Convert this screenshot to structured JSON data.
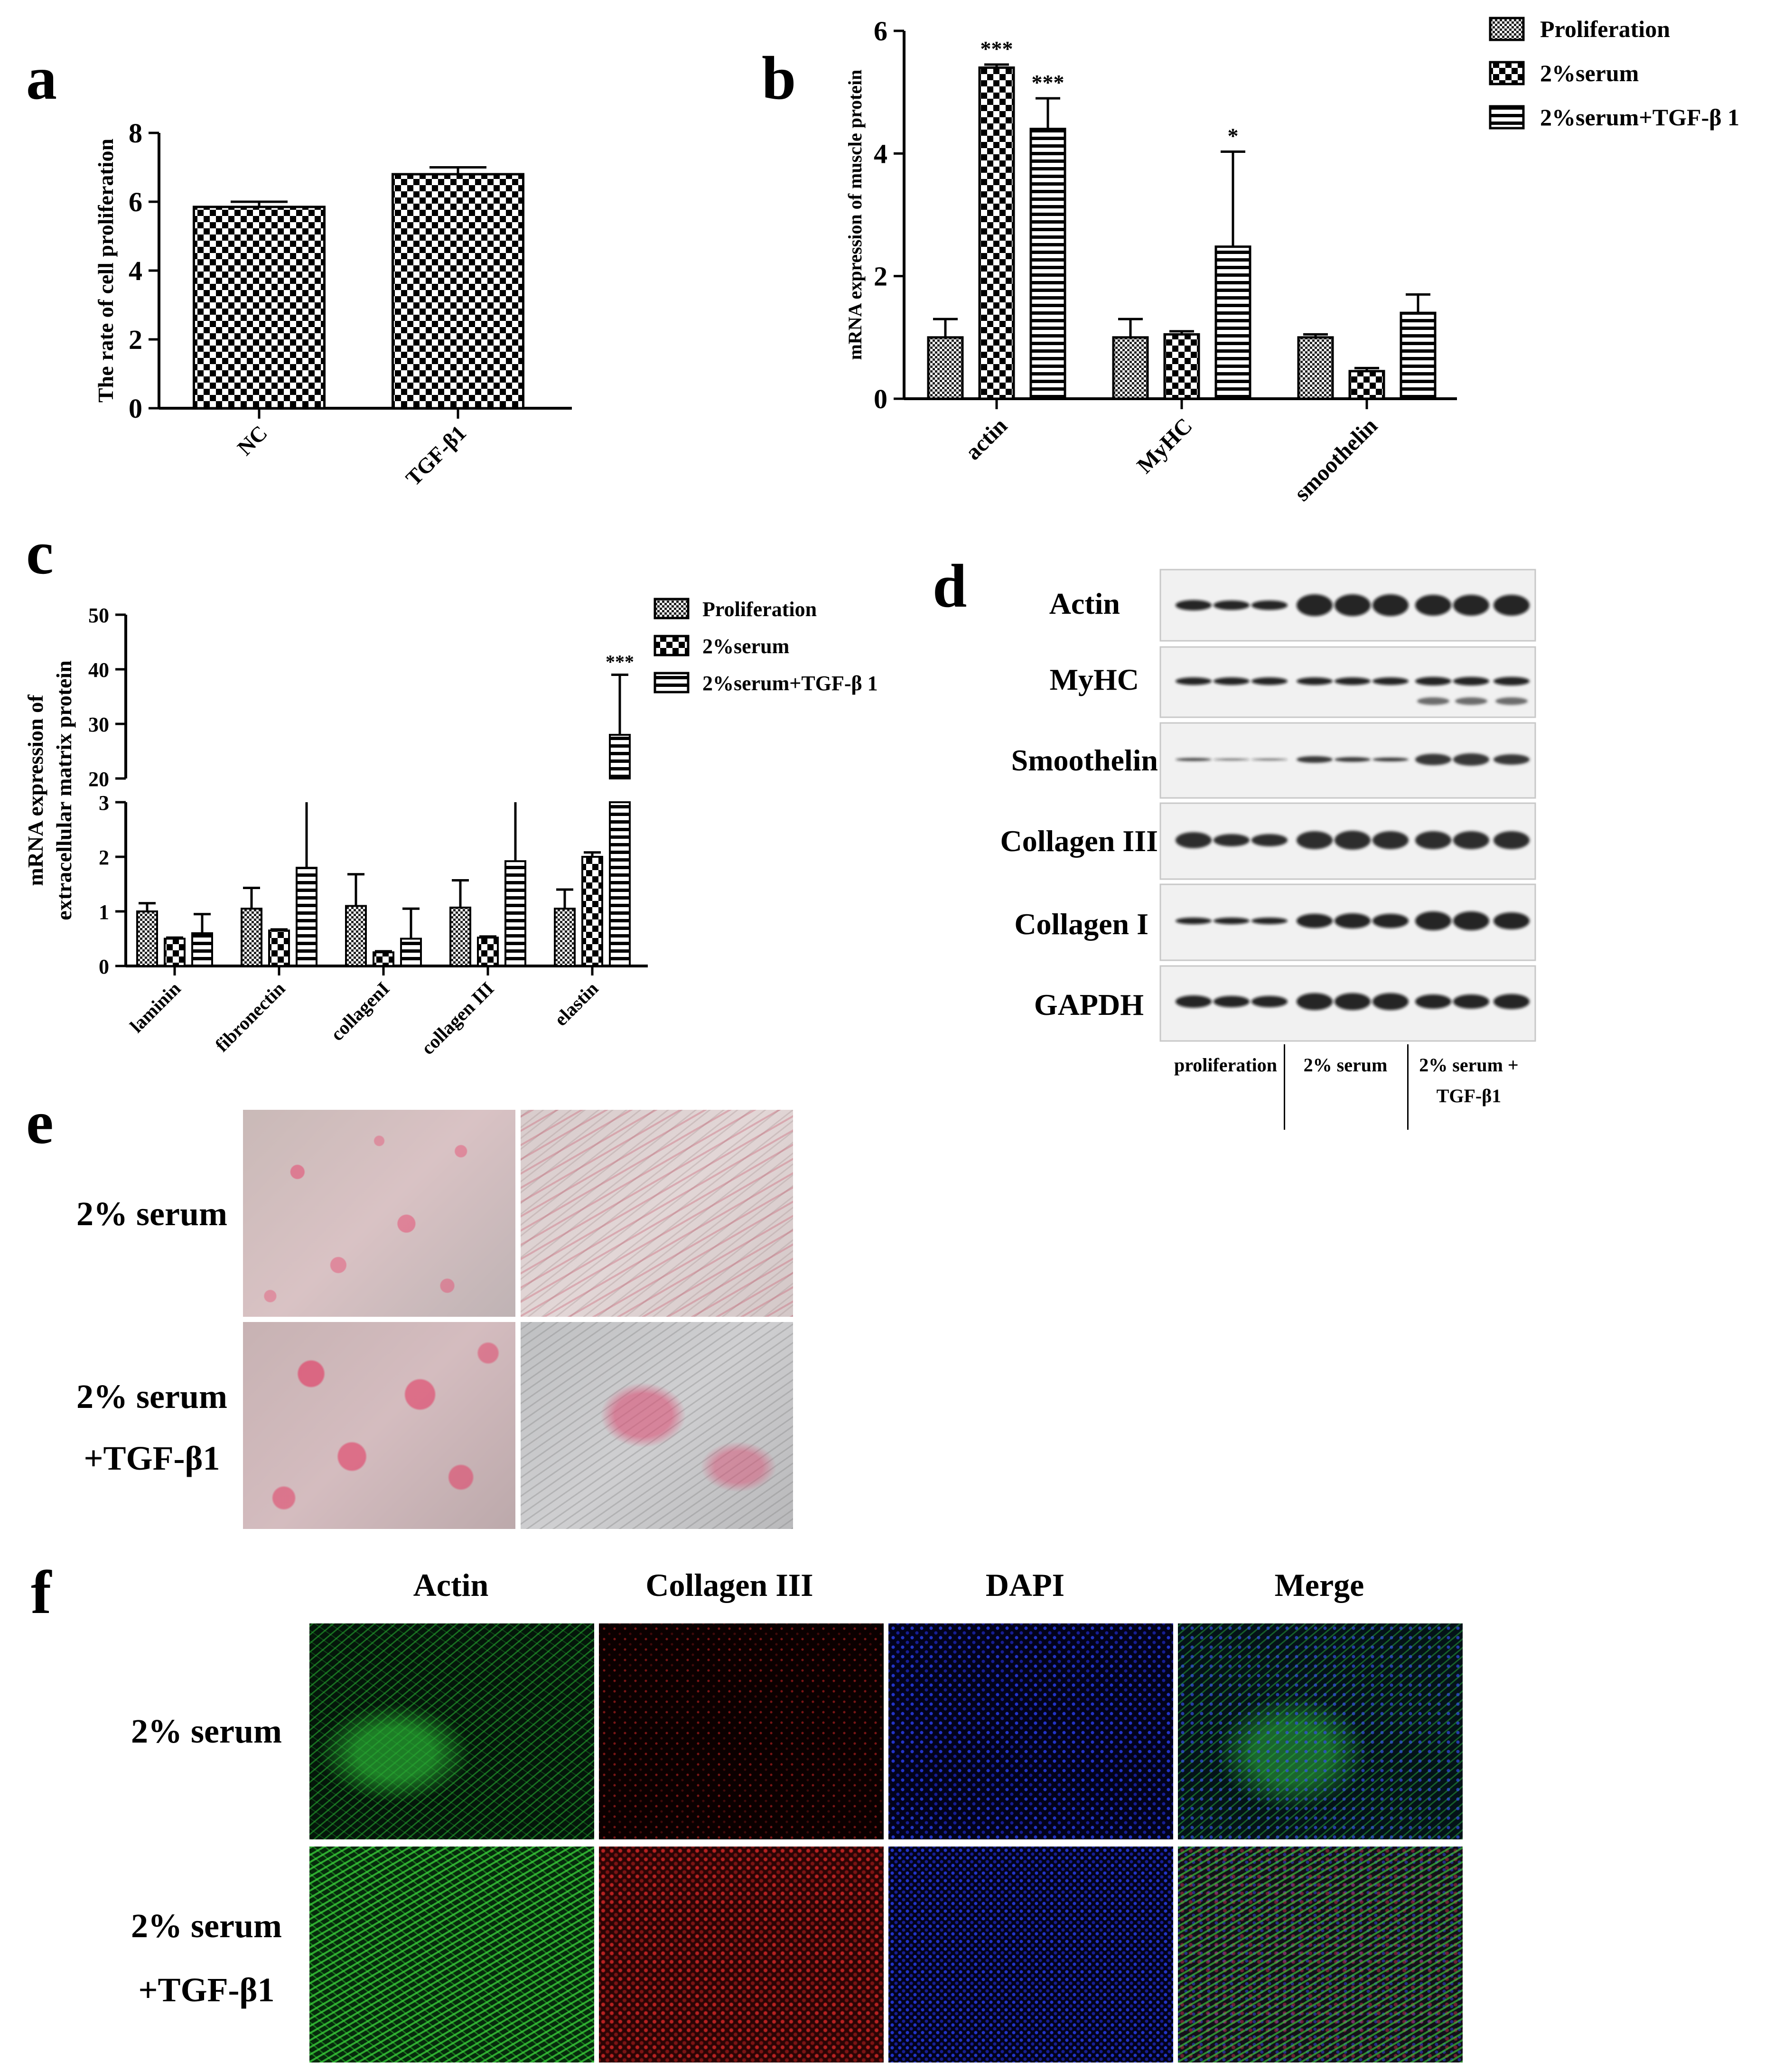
{
  "panels": {
    "a": "a",
    "b": "b",
    "c": "c",
    "d": "d",
    "e": "e",
    "f": "f"
  },
  "colors": {
    "axis": "#000000",
    "bar_fill_light": "#ffffff",
    "bar_fill_dark": "#000000",
    "micro_red": "#e24a6a",
    "fluor_green": "#1f9e2a",
    "fluor_red": "#b01818",
    "fluor_blue": "#1a22c8"
  },
  "chart_data": [
    {
      "id": "a",
      "type": "bar",
      "ylabel": "The rate of cell proliferation",
      "categories": [
        "NC",
        "TGF-β1"
      ],
      "values": [
        5.85,
        6.8
      ],
      "errors": [
        0.15,
        0.2
      ],
      "ylim": [
        0,
        8
      ],
      "yticks": [
        "0",
        "2",
        "4",
        "6",
        "8"
      ],
      "pattern": "checker",
      "grid": false
    },
    {
      "id": "b",
      "type": "bar",
      "ylabel": "mRNA expression of muscle protein",
      "categories": [
        "actin",
        "MyHC",
        "smoothelin"
      ],
      "ylim": [
        0,
        6
      ],
      "yticks": [
        "0",
        "2",
        "4",
        "6"
      ],
      "legend_position": "top-right",
      "series": [
        {
          "name": "Proliferation",
          "pattern": "fine",
          "values": [
            1.0,
            1.0,
            1.0
          ],
          "errors": [
            0.3,
            0.3,
            0.05
          ],
          "annotations": [
            "",
            "",
            ""
          ]
        },
        {
          "name": "2%serum",
          "pattern": "checker",
          "values": [
            5.4,
            1.05,
            0.45
          ],
          "errors": [
            0.05,
            0.05,
            0.05
          ],
          "annotations": [
            "***",
            "",
            ""
          ]
        },
        {
          "name": "2%serum+TGF-β 1",
          "pattern": "hstripe",
          "values": [
            4.4,
            2.48,
            1.4
          ],
          "errors": [
            0.5,
            1.55,
            0.3
          ],
          "annotations": [
            "***",
            "*",
            ""
          ]
        }
      ],
      "grid": false
    },
    {
      "id": "c",
      "type": "bar",
      "ylabel_line1": "mRNA expression of",
      "ylabel_line2": "extracellular matrix protein",
      "categories": [
        "laminin",
        "fibronectin",
        "collagenI",
        "collagen III",
        "elastin"
      ],
      "ylim_lower": [
        0,
        3
      ],
      "ylim_upper": [
        20,
        50
      ],
      "yticks_lower": [
        "0",
        "1",
        "2",
        "3"
      ],
      "yticks_upper": [
        "20",
        "30",
        "40",
        "50"
      ],
      "axis_break": true,
      "legend_position": "top-right",
      "series": [
        {
          "name": "Proliferation",
          "pattern": "fine",
          "values": [
            1.0,
            1.05,
            1.1,
            1.07,
            1.05
          ],
          "errors": [
            0.15,
            0.38,
            0.58,
            0.5,
            0.35
          ],
          "annotations": [
            "",
            "",
            "",
            "",
            ""
          ]
        },
        {
          "name": "2%serum",
          "pattern": "checker",
          "values": [
            0.5,
            0.65,
            0.25,
            0.52,
            2.0
          ],
          "errors": [
            0.02,
            0.02,
            0.02,
            0.02,
            0.08
          ],
          "annotations": [
            "",
            "",
            "",
            "",
            ""
          ]
        },
        {
          "name": "2%serum+TGF-β 1",
          "pattern": "hstripe",
          "values": [
            0.6,
            1.8,
            0.5,
            1.92,
            28.0
          ],
          "errors": [
            0.35,
            1.3,
            0.55,
            1.2,
            11.0
          ],
          "annotations": [
            "",
            "",
            "",
            "",
            "***"
          ]
        }
      ],
      "grid": false
    }
  ],
  "western_blot": {
    "rows": [
      "Actin",
      "MyHC",
      "Smoothelin",
      "Collagen III",
      "Collagen I",
      "GAPDH"
    ],
    "groups": [
      "proliferation",
      "2% serum",
      "2% serum +",
      "TGF-β1"
    ]
  },
  "panel_e": {
    "row_labels": [
      "2% serum",
      "2% serum",
      "+TGF-β1"
    ]
  },
  "panel_f": {
    "columns": [
      "Actin",
      "Collagen III",
      "DAPI",
      "Merge"
    ],
    "row_labels": [
      "2% serum",
      "2% serum",
      "+TGF-β1"
    ]
  }
}
